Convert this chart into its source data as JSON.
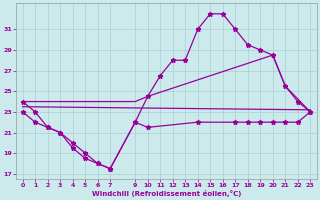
{
  "xlabel": "Windchill (Refroidissement éolien,°C)",
  "background_color": "#cce9ec",
  "grid_color": "#a8d0d4",
  "line_color": "#990099",
  "series1_x": [
    0,
    1,
    2,
    3,
    4,
    5,
    6,
    7,
    9,
    10,
    11,
    12,
    13,
    14,
    15,
    16,
    17,
    18,
    19,
    20,
    21,
    22,
    23
  ],
  "series1_y": [
    24,
    23,
    21.5,
    21,
    20,
    19,
    18,
    17.5,
    22,
    24.5,
    26.5,
    28,
    28,
    31,
    32.5,
    32.5,
    31,
    29.5,
    29,
    28.5,
    25.5,
    24,
    23
  ],
  "series2_x": [
    0,
    9,
    10,
    20,
    21,
    23
  ],
  "series2_y": [
    24,
    24,
    24.5,
    28.5,
    25.5,
    23
  ],
  "series3_x": [
    0,
    23
  ],
  "series3_y": [
    23.5,
    23.2
  ],
  "series4_x": [
    0,
    1,
    2,
    3,
    4,
    5,
    6,
    7,
    9,
    10,
    14,
    17,
    18,
    19,
    20,
    21,
    22,
    23
  ],
  "series4_y": [
    23,
    22,
    21.5,
    21,
    19.5,
    18.5,
    18,
    17.5,
    22,
    21.5,
    22,
    22,
    22,
    22,
    22,
    22,
    22,
    23
  ],
  "ylim": [
    16.5,
    33.5
  ],
  "yticks": [
    17,
    19,
    21,
    23,
    25,
    27,
    29,
    31
  ],
  "xticks": [
    0,
    1,
    2,
    3,
    4,
    5,
    6,
    7,
    9,
    10,
    11,
    12,
    13,
    14,
    15,
    16,
    17,
    18,
    19,
    20,
    21,
    22,
    23
  ],
  "xlim": [
    -0.5,
    23.5
  ]
}
